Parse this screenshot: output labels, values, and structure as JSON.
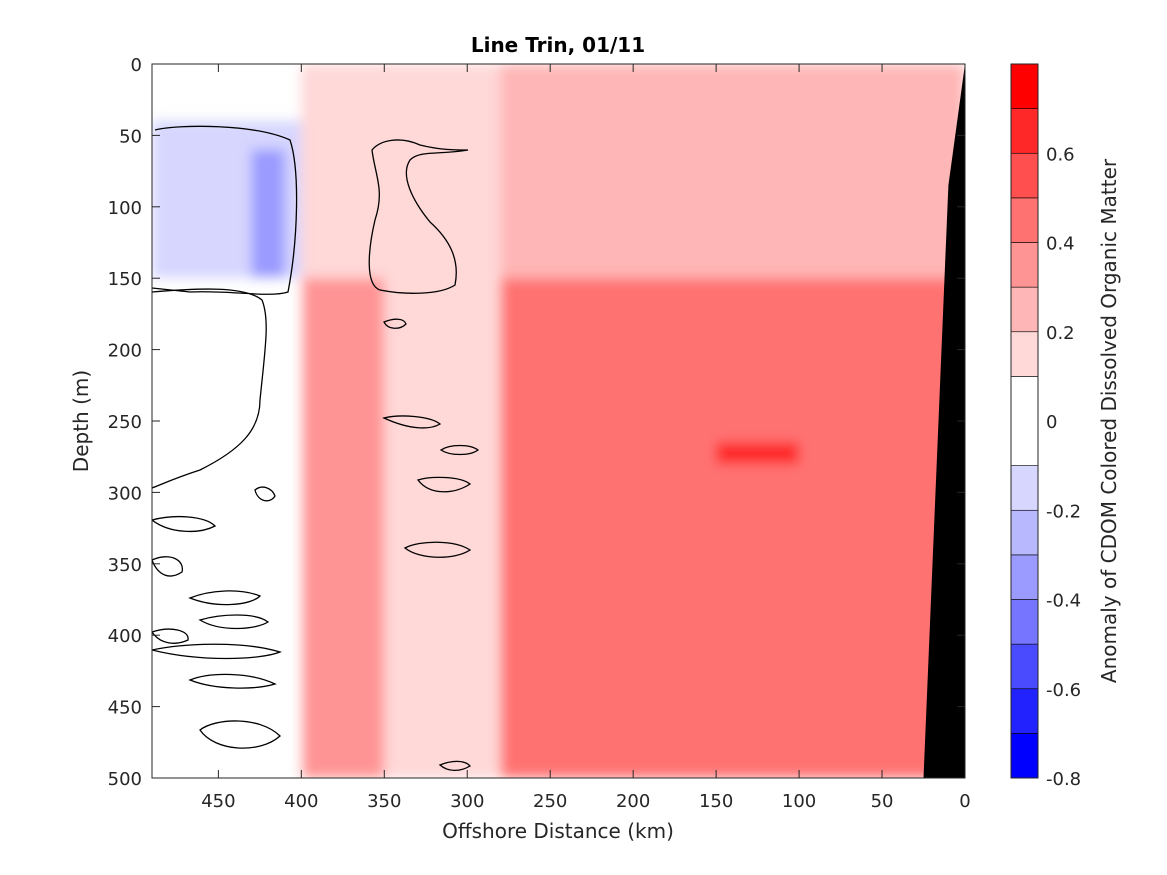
{
  "chart_data": {
    "type": "heatmap",
    "title": "Line Trin, 01/11",
    "xlabel": "Offshore Distance (km)",
    "ylabel": "Depth (m)",
    "colorbar_label": "Anomaly of CDOM Colored Dissolved Organic Matter",
    "x_reversed": true,
    "y_reversed": true,
    "xlim": [
      0,
      490
    ],
    "ylim": [
      0,
      500
    ],
    "x_ticks": [
      450,
      400,
      350,
      300,
      250,
      200,
      150,
      100,
      50,
      0
    ],
    "x_tick_labels": [
      "450",
      "400",
      "350",
      "300",
      "250",
      "200",
      "150",
      "100",
      "50",
      "0"
    ],
    "y_ticks": [
      0,
      50,
      100,
      150,
      200,
      250,
      300,
      350,
      400,
      450,
      500
    ],
    "y_tick_labels": [
      "0",
      "50",
      "100",
      "150",
      "200",
      "250",
      "300",
      "350",
      "400",
      "450",
      "500"
    ],
    "colorbar": {
      "range": [
        -0.8,
        0.8
      ],
      "levels": [
        -0.8,
        -0.7,
        -0.6,
        -0.5,
        -0.4,
        -0.3,
        -0.2,
        -0.1,
        0.1,
        0.2,
        0.3,
        0.4,
        0.5,
        0.6,
        0.7,
        0.8
      ],
      "colors": [
        "#0000ff",
        "#2222ff",
        "#4a4aff",
        "#7575ff",
        "#9a9aff",
        "#b8b8ff",
        "#d6d6ff",
        "#ffffff",
        "#ffd8d8",
        "#ffb6b6",
        "#ff9494",
        "#ff7272",
        "#ff4f4f",
        "#ff2828",
        "#ff0000"
      ],
      "ticks": [
        0.6,
        0.4,
        0.2,
        0,
        -0.2,
        -0.4,
        -0.6,
        -0.8
      ],
      "tick_labels": [
        "0.6",
        "0.4",
        "0.2",
        "0",
        "-0.2",
        "-0.4",
        "-0.6",
        "-0.8"
      ]
    },
    "regions": [
      {
        "name": "offshore-upper-negative",
        "x_range": [
          400,
          490
        ],
        "depth_range": [
          40,
          150
        ],
        "value": -0.2
      },
      {
        "name": "offshore-upper-core",
        "x_range": [
          410,
          430
        ],
        "depth_range": [
          60,
          150
        ],
        "value": -0.4
      },
      {
        "name": "mid-upper-positive",
        "x_range": [
          280,
          400
        ],
        "depth_range": [
          0,
          150
        ],
        "value": 0.15
      },
      {
        "name": "near-upper-positive",
        "x_range": [
          0,
          280
        ],
        "depth_range": [
          0,
          150
        ],
        "value": 0.25
      },
      {
        "name": "offshore-deep",
        "x_range": [
          400,
          490
        ],
        "depth_range": [
          150,
          500
        ],
        "value": 0.05
      },
      {
        "name": "band-375km",
        "x_range": [
          350,
          400
        ],
        "depth_range": [
          150,
          500
        ],
        "value": 0.3
      },
      {
        "name": "mid-deep",
        "x_range": [
          280,
          350
        ],
        "depth_range": [
          150,
          500
        ],
        "value": 0.12
      },
      {
        "name": "near-deep",
        "x_range": [
          0,
          280
        ],
        "depth_range": [
          150,
          500
        ],
        "value": 0.45
      },
      {
        "name": "near-deep-max",
        "x_range": [
          100,
          150
        ],
        "depth_range": [
          265,
          280
        ],
        "value": 0.65
      }
    ],
    "bathymetry": {
      "name": "seafloor",
      "points": [
        [
          0,
          0
        ],
        [
          10,
          85
        ],
        [
          25,
          500
        ],
        [
          0,
          500
        ]
      ]
    }
  }
}
